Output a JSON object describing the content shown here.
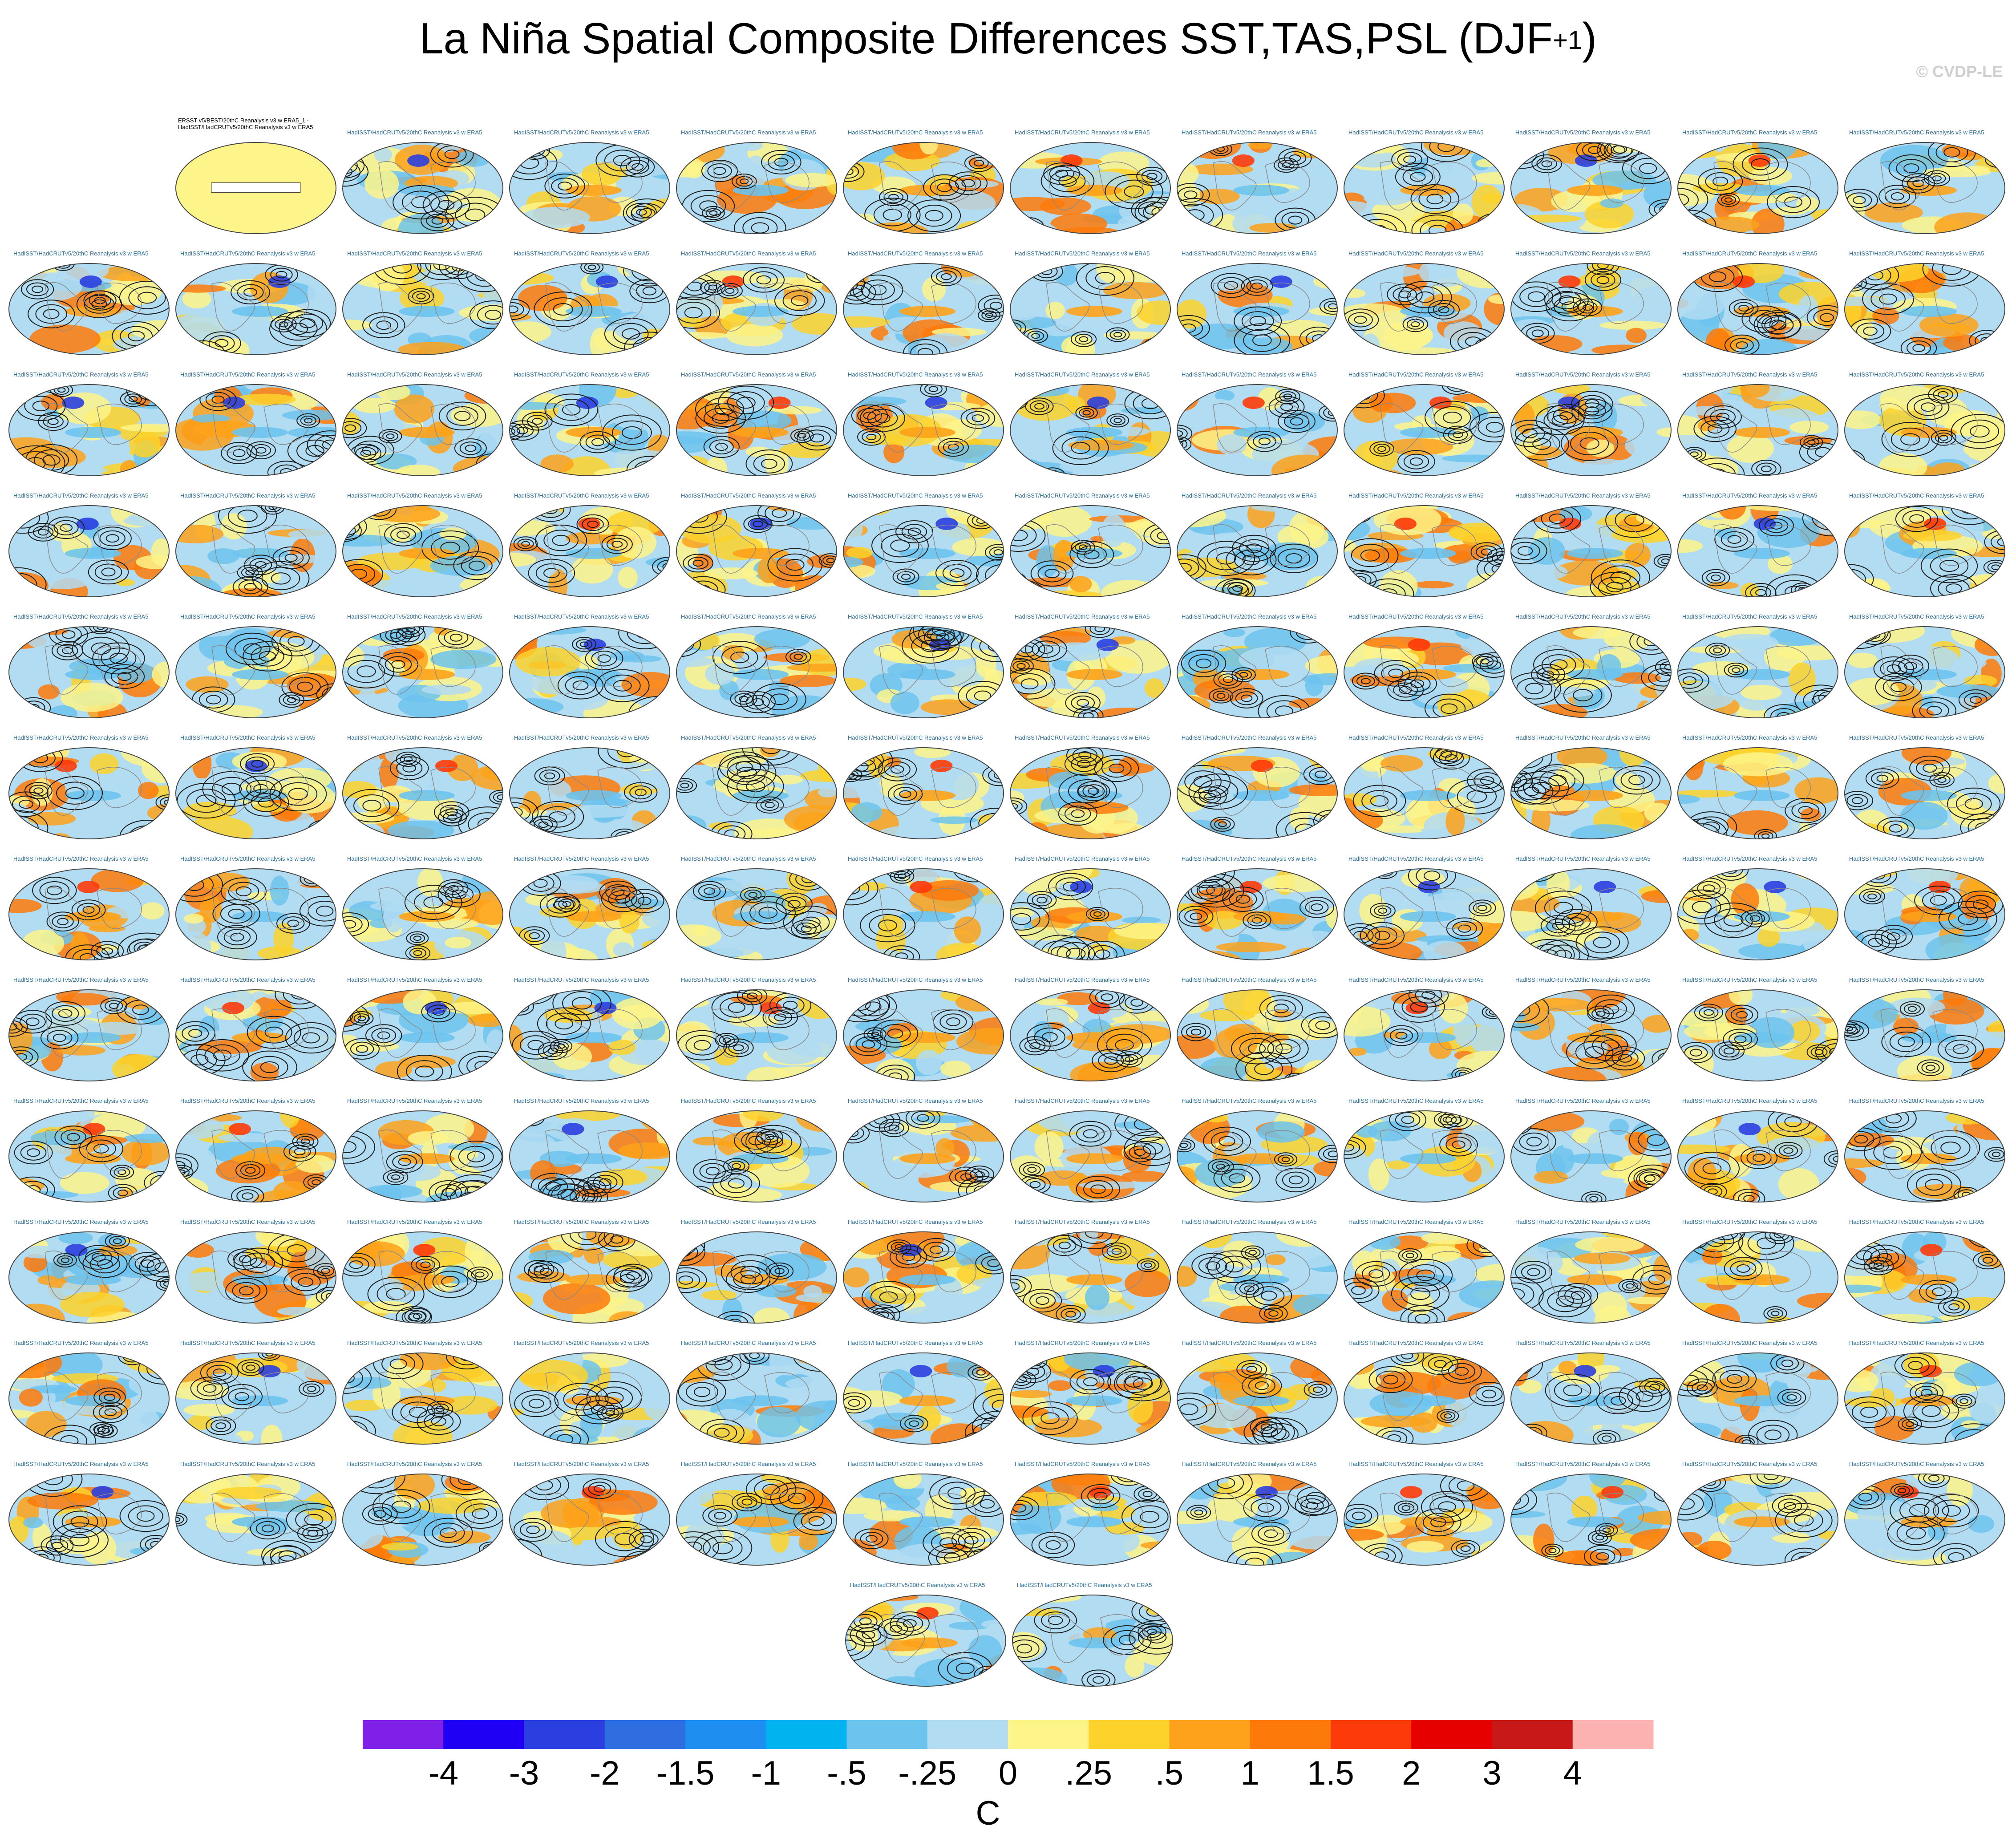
{
  "figure": {
    "title": "La Niña Spatial Composite Differences SST,TAS,PSL (DJF",
    "title_superscript": "+1",
    "title_close": ")",
    "watermark": "© CVDP-LE",
    "first_panel_caption_line1": "ERSST v5/BEST/20thC Reanalysis v3 w ERA5_1 -",
    "first_panel_caption_line2": "HadISST/HadCRUTv5/20thC Reanalysis v3 w ERA5",
    "panel_header_text": "HadISST/HadCRUTv5/20thC Reanalysis v3 w ERA5",
    "grid_rows_panels": [
      11,
      12,
      12,
      12,
      12,
      12,
      12,
      12,
      12,
      12,
      12,
      12,
      2
    ]
  },
  "chart_data": {
    "type": "heatmap",
    "projection": "global map panels",
    "colorbar": {
      "unit_label": "C",
      "tick_labels": [
        "-4",
        "-3",
        "-2",
        "-1.5",
        "-1",
        "-.5",
        "-.25",
        "0",
        ".25",
        ".5",
        "1",
        "1.5",
        "2",
        "3",
        "4"
      ],
      "colors": [
        "#7f20e8",
        "#1f00f5",
        "#2b3fe0",
        "#2f6ee0",
        "#1e8ef0",
        "#00b4f0",
        "#6cc3ee",
        "#b2dcf2",
        "#fdf58a",
        "#fdd22a",
        "#fda21a",
        "#fd7a0a",
        "#fd3a0a",
        "#e60000",
        "#c81818",
        "#fdb2b2"
      ]
    }
  }
}
